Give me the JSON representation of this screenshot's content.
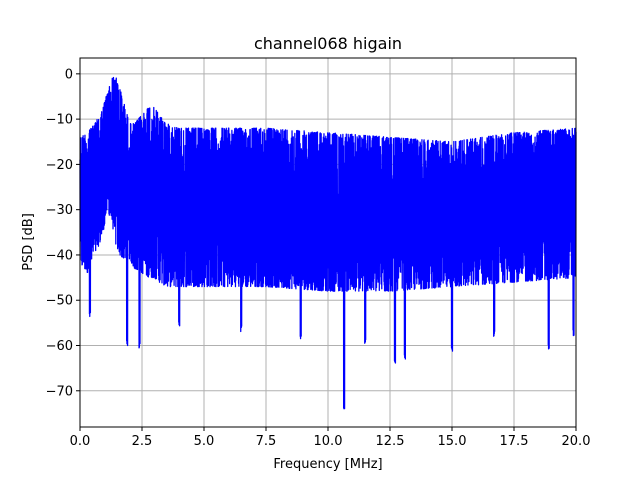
{
  "chart_data": {
    "type": "line",
    "title": "channel068 higain",
    "xlabel": "Frequency [MHz]",
    "ylabel": "PSD [dB]",
    "xlim": [
      0,
      20
    ],
    "ylim": [
      -78,
      3.5
    ],
    "xticks": [
      0.0,
      2.5,
      5.0,
      7.5,
      10.0,
      12.5,
      15.0,
      17.5,
      20.0
    ],
    "xtick_labels": [
      "0.0",
      "2.5",
      "5.0",
      "7.5",
      "10.0",
      "12.5",
      "15.0",
      "17.5",
      "20.0"
    ],
    "yticks": [
      0,
      -10,
      -20,
      -30,
      -40,
      -50,
      -60,
      -70
    ],
    "ytick_labels": [
      "0",
      "−10",
      "−20",
      "−30",
      "−40",
      "−50",
      "−60",
      "−70"
    ],
    "grid": true,
    "line_color": "#0000ff",
    "envelope": {
      "x": [
        0,
        0.3,
        0.6,
        0.9,
        1.1,
        1.3,
        1.4,
        1.6,
        1.8,
        2.0,
        2.2,
        2.5,
        2.8,
        3.0,
        3.2,
        3.5,
        4.0,
        5.0,
        6.0,
        7.5,
        10.0,
        12.5,
        15.0,
        17.5,
        20.0
      ],
      "upper": [
        -14,
        -13,
        -11,
        -8,
        -4,
        -1,
        0,
        -3,
        -7,
        -11,
        -11,
        -9,
        -7,
        -7.5,
        -9,
        -11,
        -12,
        -12,
        -12,
        -12,
        -13,
        -14,
        -15,
        -13,
        -12
      ],
      "lower": [
        -42,
        -44,
        -40,
        -36,
        -30,
        -33,
        -37,
        -40,
        -41,
        -41,
        -43,
        -44,
        -45,
        -45,
        -46,
        -47,
        -47,
        -47,
        -47,
        -47,
        -48,
        -48,
        -47,
        -46,
        -45
      ]
    },
    "dips": [
      {
        "x": 0.4,
        "y": -54
      },
      {
        "x": 1.9,
        "y": -60
      },
      {
        "x": 2.4,
        "y": -61
      },
      {
        "x": 4.0,
        "y": -56
      },
      {
        "x": 6.5,
        "y": -57
      },
      {
        "x": 8.9,
        "y": -59
      },
      {
        "x": 10.65,
        "y": -74
      },
      {
        "x": 11.5,
        "y": -60
      },
      {
        "x": 12.7,
        "y": -64
      },
      {
        "x": 13.1,
        "y": -63
      },
      {
        "x": 15.0,
        "y": -62
      },
      {
        "x": 16.7,
        "y": -58
      },
      {
        "x": 18.9,
        "y": -61
      },
      {
        "x": 19.9,
        "y": -58
      }
    ]
  }
}
